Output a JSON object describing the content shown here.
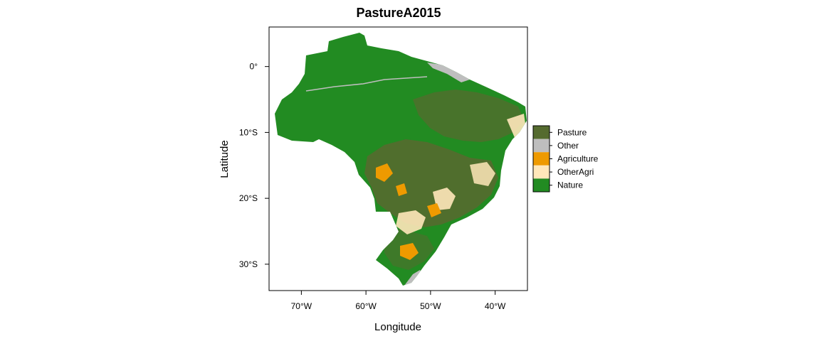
{
  "title": "PastureA2015",
  "axes": {
    "x_label": "Longitude",
    "y_label": "Latitude",
    "x_ticks": [
      {
        "value": -70,
        "label": "70°W"
      },
      {
        "value": -60,
        "label": "60°W"
      },
      {
        "value": -50,
        "label": "50°W"
      },
      {
        "value": -40,
        "label": "40°W"
      }
    ],
    "y_ticks": [
      {
        "value": 0,
        "label": "0°"
      },
      {
        "value": -10,
        "label": "10°S"
      },
      {
        "value": -20,
        "label": "20°S"
      },
      {
        "value": -30,
        "label": "30°S"
      }
    ],
    "xlim": [
      -75,
      -35
    ],
    "ylim": [
      -34,
      6
    ]
  },
  "legend": {
    "placement": "right",
    "items": [
      {
        "label": "Pasture",
        "color": "#556B2F"
      },
      {
        "label": "Other",
        "color": "#BEBEBE"
      },
      {
        "label": "Agriculture",
        "color": "#EE9A00"
      },
      {
        "label": "OtherAgri",
        "color": "#FFE7BA"
      },
      {
        "label": "Nature",
        "color": "#228B22"
      }
    ]
  },
  "colors": {
    "nature": "#228B22",
    "pasture": "#556B2F",
    "other": "#BEBEBE",
    "agriculture": "#EE9A00",
    "otheragri": "#FFE7BA"
  }
}
